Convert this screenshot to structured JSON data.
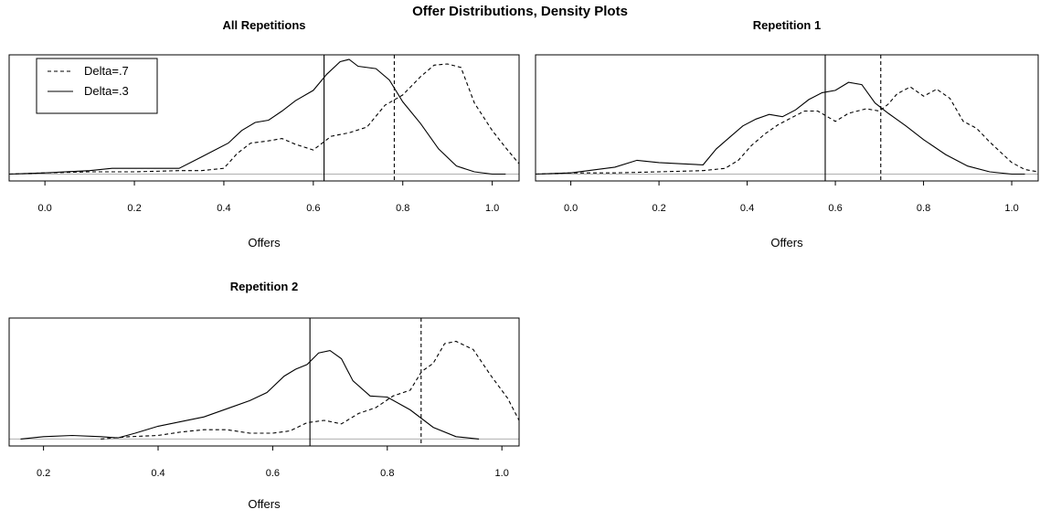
{
  "page_title": "Offer Distributions, Density Plots",
  "chart_data": [
    {
      "type": "line",
      "title": "All Repetitions",
      "xlabel": "Offers",
      "ylabel": "",
      "xlim": [
        -0.08,
        1.06
      ],
      "ylim": [
        -0.06,
        1.04
      ],
      "xticks": [
        "0.0",
        "0.2",
        "0.4",
        "0.6",
        "0.8",
        "1.0"
      ],
      "legend": {
        "position": "top-left",
        "entries": [
          "Delta=.7",
          "Delta=.3"
        ]
      },
      "vlines": [
        {
          "series": "Delta=.3",
          "x": 0.624
        },
        {
          "series": "Delta=.7",
          "x": 0.781
        }
      ],
      "series": [
        {
          "name": "Delta=.7",
          "style": "dashed",
          "x": [
            -0.08,
            0.0,
            0.1,
            0.2,
            0.3,
            0.35,
            0.4,
            0.43,
            0.46,
            0.5,
            0.53,
            0.56,
            0.6,
            0.64,
            0.68,
            0.72,
            0.76,
            0.8,
            0.84,
            0.87,
            0.9,
            0.93,
            0.96,
            1.0,
            1.03,
            1.06
          ],
          "y": [
            0.0,
            0.01,
            0.02,
            0.02,
            0.03,
            0.03,
            0.05,
            0.18,
            0.27,
            0.29,
            0.31,
            0.26,
            0.21,
            0.33,
            0.36,
            0.41,
            0.6,
            0.69,
            0.85,
            0.95,
            0.96,
            0.93,
            0.62,
            0.38,
            0.23,
            0.09
          ]
        },
        {
          "name": "Delta=.3",
          "style": "solid",
          "x": [
            -0.08,
            0.0,
            0.1,
            0.15,
            0.2,
            0.25,
            0.3,
            0.35,
            0.38,
            0.41,
            0.44,
            0.47,
            0.5,
            0.53,
            0.56,
            0.6,
            0.63,
            0.66,
            0.68,
            0.7,
            0.74,
            0.77,
            0.8,
            0.84,
            0.88,
            0.92,
            0.96,
            1.0,
            1.03
          ],
          "y": [
            0.0,
            0.01,
            0.03,
            0.05,
            0.05,
            0.05,
            0.05,
            0.15,
            0.21,
            0.27,
            0.38,
            0.45,
            0.47,
            0.55,
            0.64,
            0.73,
            0.87,
            0.98,
            1.0,
            0.94,
            0.92,
            0.82,
            0.63,
            0.44,
            0.22,
            0.07,
            0.02,
            0.0,
            0.0
          ]
        }
      ]
    },
    {
      "type": "line",
      "title": "Repetition 1",
      "xlabel": "Offers",
      "ylabel": "",
      "xlim": [
        -0.08,
        1.06
      ],
      "ylim": [
        -0.06,
        1.04
      ],
      "xticks": [
        "0.0",
        "0.2",
        "0.4",
        "0.6",
        "0.8",
        "1.0"
      ],
      "legend": null,
      "vlines": [
        {
          "series": "Delta=.3",
          "x": 0.577
        },
        {
          "series": "Delta=.7",
          "x": 0.703
        }
      ],
      "series": [
        {
          "name": "Delta=.7",
          "style": "dashed",
          "x": [
            -0.08,
            0.0,
            0.1,
            0.2,
            0.3,
            0.35,
            0.38,
            0.41,
            0.44,
            0.47,
            0.5,
            0.53,
            0.56,
            0.6,
            0.63,
            0.67,
            0.7,
            0.72,
            0.74,
            0.77,
            0.8,
            0.83,
            0.86,
            0.89,
            0.92,
            0.95,
            1.0,
            1.03,
            1.06
          ],
          "y": [
            0.0,
            0.01,
            0.01,
            0.02,
            0.03,
            0.05,
            0.12,
            0.25,
            0.35,
            0.43,
            0.49,
            0.55,
            0.55,
            0.46,
            0.53,
            0.57,
            0.55,
            0.61,
            0.7,
            0.76,
            0.68,
            0.74,
            0.66,
            0.46,
            0.4,
            0.28,
            0.1,
            0.04,
            0.02
          ]
        },
        {
          "name": "Delta=.3",
          "style": "solid",
          "x": [
            -0.08,
            0.0,
            0.1,
            0.15,
            0.2,
            0.25,
            0.3,
            0.33,
            0.36,
            0.39,
            0.42,
            0.45,
            0.48,
            0.51,
            0.54,
            0.57,
            0.6,
            0.63,
            0.66,
            0.69,
            0.72,
            0.76,
            0.8,
            0.85,
            0.9,
            0.95,
            1.0,
            1.03
          ],
          "y": [
            0.0,
            0.01,
            0.06,
            0.12,
            0.1,
            0.09,
            0.08,
            0.22,
            0.32,
            0.42,
            0.48,
            0.52,
            0.5,
            0.56,
            0.65,
            0.71,
            0.73,
            0.8,
            0.78,
            0.62,
            0.53,
            0.42,
            0.3,
            0.17,
            0.07,
            0.02,
            0.0,
            0.0
          ]
        }
      ]
    },
    {
      "type": "line",
      "title": "Repetition 2",
      "xlabel": "Offers",
      "ylabel": "",
      "xlim": [
        0.14,
        1.03
      ],
      "ylim": [
        -0.06,
        1.04
      ],
      "xticks": [
        "0.2",
        "0.4",
        "0.6",
        "0.8",
        "1.0"
      ],
      "legend": null,
      "vlines": [
        {
          "series": "Delta=.3",
          "x": 0.665
        },
        {
          "series": "Delta=.7",
          "x": 0.859
        }
      ],
      "series": [
        {
          "name": "Delta=.7",
          "style": "dashed",
          "x": [
            0.3,
            0.35,
            0.4,
            0.44,
            0.48,
            0.52,
            0.56,
            0.6,
            0.63,
            0.66,
            0.69,
            0.72,
            0.75,
            0.78,
            0.81,
            0.84,
            0.86,
            0.88,
            0.9,
            0.92,
            0.95,
            0.98,
            1.01,
            1.03
          ],
          "y": [
            0.0,
            0.02,
            0.03,
            0.06,
            0.08,
            0.08,
            0.05,
            0.05,
            0.07,
            0.14,
            0.16,
            0.13,
            0.22,
            0.27,
            0.37,
            0.42,
            0.58,
            0.65,
            0.82,
            0.84,
            0.77,
            0.55,
            0.35,
            0.16
          ]
        },
        {
          "name": "Delta=.3",
          "style": "solid",
          "x": [
            0.16,
            0.2,
            0.25,
            0.3,
            0.33,
            0.36,
            0.4,
            0.44,
            0.48,
            0.52,
            0.56,
            0.59,
            0.62,
            0.64,
            0.66,
            0.68,
            0.7,
            0.72,
            0.74,
            0.77,
            0.8,
            0.84,
            0.88,
            0.92,
            0.96
          ],
          "y": [
            0.0,
            0.02,
            0.03,
            0.02,
            0.01,
            0.05,
            0.11,
            0.15,
            0.19,
            0.26,
            0.33,
            0.4,
            0.54,
            0.6,
            0.64,
            0.74,
            0.76,
            0.69,
            0.5,
            0.37,
            0.36,
            0.25,
            0.1,
            0.02,
            0.0
          ]
        }
      ]
    }
  ]
}
